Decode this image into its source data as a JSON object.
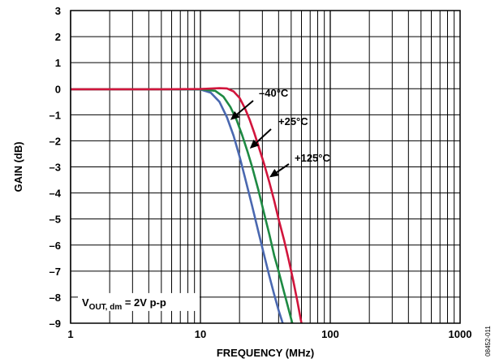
{
  "chart_data": {
    "type": "line",
    "xlabel": "FREQUENCY (MHz)",
    "ylabel": "GAIN (dB)",
    "x_scale": "log",
    "xlim": [
      1,
      1000
    ],
    "ylim": [
      -9,
      3
    ],
    "grid": true,
    "x_ticks": [
      {
        "value": 1,
        "label": "1"
      },
      {
        "value": 10,
        "label": "10"
      },
      {
        "value": 100,
        "label": "100"
      },
      {
        "value": 1000,
        "label": "1000"
      }
    ],
    "y_ticks": [
      {
        "value": 3,
        "label": "3"
      },
      {
        "value": 2,
        "label": "2"
      },
      {
        "value": 1,
        "label": "1"
      },
      {
        "value": 0,
        "label": "0"
      },
      {
        "value": -1,
        "label": "–1"
      },
      {
        "value": -2,
        "label": "–2"
      },
      {
        "value": -3,
        "label": "–3"
      },
      {
        "value": -4,
        "label": "–4"
      },
      {
        "value": -5,
        "label": "–5"
      },
      {
        "value": -6,
        "label": "–6"
      },
      {
        "value": -7,
        "label": "–7"
      },
      {
        "value": -8,
        "label": "–8"
      },
      {
        "value": -9,
        "label": "–9"
      }
    ],
    "series": [
      {
        "name": "–40°C",
        "color": "#4a68b0",
        "x": [
          1,
          5,
          10,
          12,
          14,
          16,
          18,
          20,
          22,
          25,
          28,
          31,
          34,
          37,
          40,
          43
        ],
        "y": [
          -0.02,
          -0.02,
          -0.03,
          -0.15,
          -0.5,
          -1.1,
          -1.8,
          -2.6,
          -3.4,
          -4.5,
          -5.5,
          -6.4,
          -7.2,
          -7.9,
          -8.5,
          -9.0
        ]
      },
      {
        "name": "+25°C",
        "color": "#1e8a43",
        "x": [
          1,
          5,
          10,
          13,
          15,
          17,
          19,
          21,
          23,
          25,
          28,
          31,
          34,
          37,
          40,
          44,
          48,
          51
        ],
        "y": [
          -0.02,
          -0.02,
          -0.02,
          -0.08,
          -0.3,
          -0.7,
          -1.2,
          -1.8,
          -2.4,
          -3.0,
          -3.9,
          -4.8,
          -5.6,
          -6.4,
          -7.0,
          -7.8,
          -8.5,
          -9.0
        ]
      },
      {
        "name": "+125°C",
        "color": "#d1153c",
        "x": [
          1,
          5,
          10,
          14,
          16,
          18,
          20,
          22,
          24,
          26,
          28,
          31,
          34,
          37,
          40,
          44,
          48,
          52,
          56,
          60
        ],
        "y": [
          -0.02,
          -0.02,
          -0.01,
          0.02,
          0.01,
          -0.1,
          -0.35,
          -0.75,
          -1.2,
          -1.7,
          -2.2,
          -2.9,
          -3.6,
          -4.3,
          -5.0,
          -5.8,
          -6.6,
          -7.4,
          -8.2,
          -9.0
        ]
      }
    ],
    "annotations": [
      {
        "text": "–40°C",
        "series": 0,
        "arrow_to": [
          17,
          -1.2
        ]
      },
      {
        "text": "+25°C",
        "series": 1,
        "arrow_to": [
          24,
          -2.3
        ]
      },
      {
        "text": "+125°C",
        "series": 2,
        "arrow_to": [
          34,
          -3.4
        ]
      }
    ],
    "condition_label": {
      "main": "V",
      "sub": "OUT, dm",
      "rest": " = 2V p-p"
    },
    "figure_id": "08452-011"
  }
}
